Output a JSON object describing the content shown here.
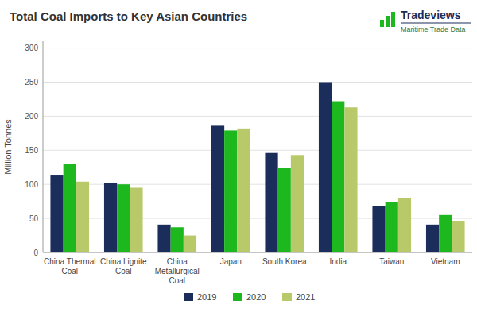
{
  "chart_data": {
    "type": "bar",
    "title": "Total Coal Imports to Key Asian Countries",
    "ylabel": "Million Tonnes",
    "annotations": [
      "Tradeviews",
      "Maritime Trade Data"
    ],
    "categories": [
      "China Thermal\nCoal",
      "China Lignite\nCoal",
      "China\nMetallurgical\nCoal",
      "Japan",
      "South Korea",
      "India",
      "Taiwan",
      "Vietnam"
    ],
    "series": [
      {
        "name": "2019",
        "color": "#1b2d5b",
        "values": [
          113,
          102,
          41,
          186,
          146,
          250,
          68,
          41
        ]
      },
      {
        "name": "2020",
        "color": "#1db81d",
        "values": [
          130,
          100,
          37,
          179,
          124,
          222,
          74,
          55
        ]
      },
      {
        "name": "2021",
        "color": "#b8c96a",
        "values": [
          104,
          95,
          25,
          182,
          143,
          213,
          80,
          46
        ]
      }
    ],
    "ylim": [
      0,
      310
    ],
    "yticks": [
      0,
      50,
      100,
      150,
      200,
      250,
      300
    ],
    "grid": true,
    "legend": "bottom"
  }
}
